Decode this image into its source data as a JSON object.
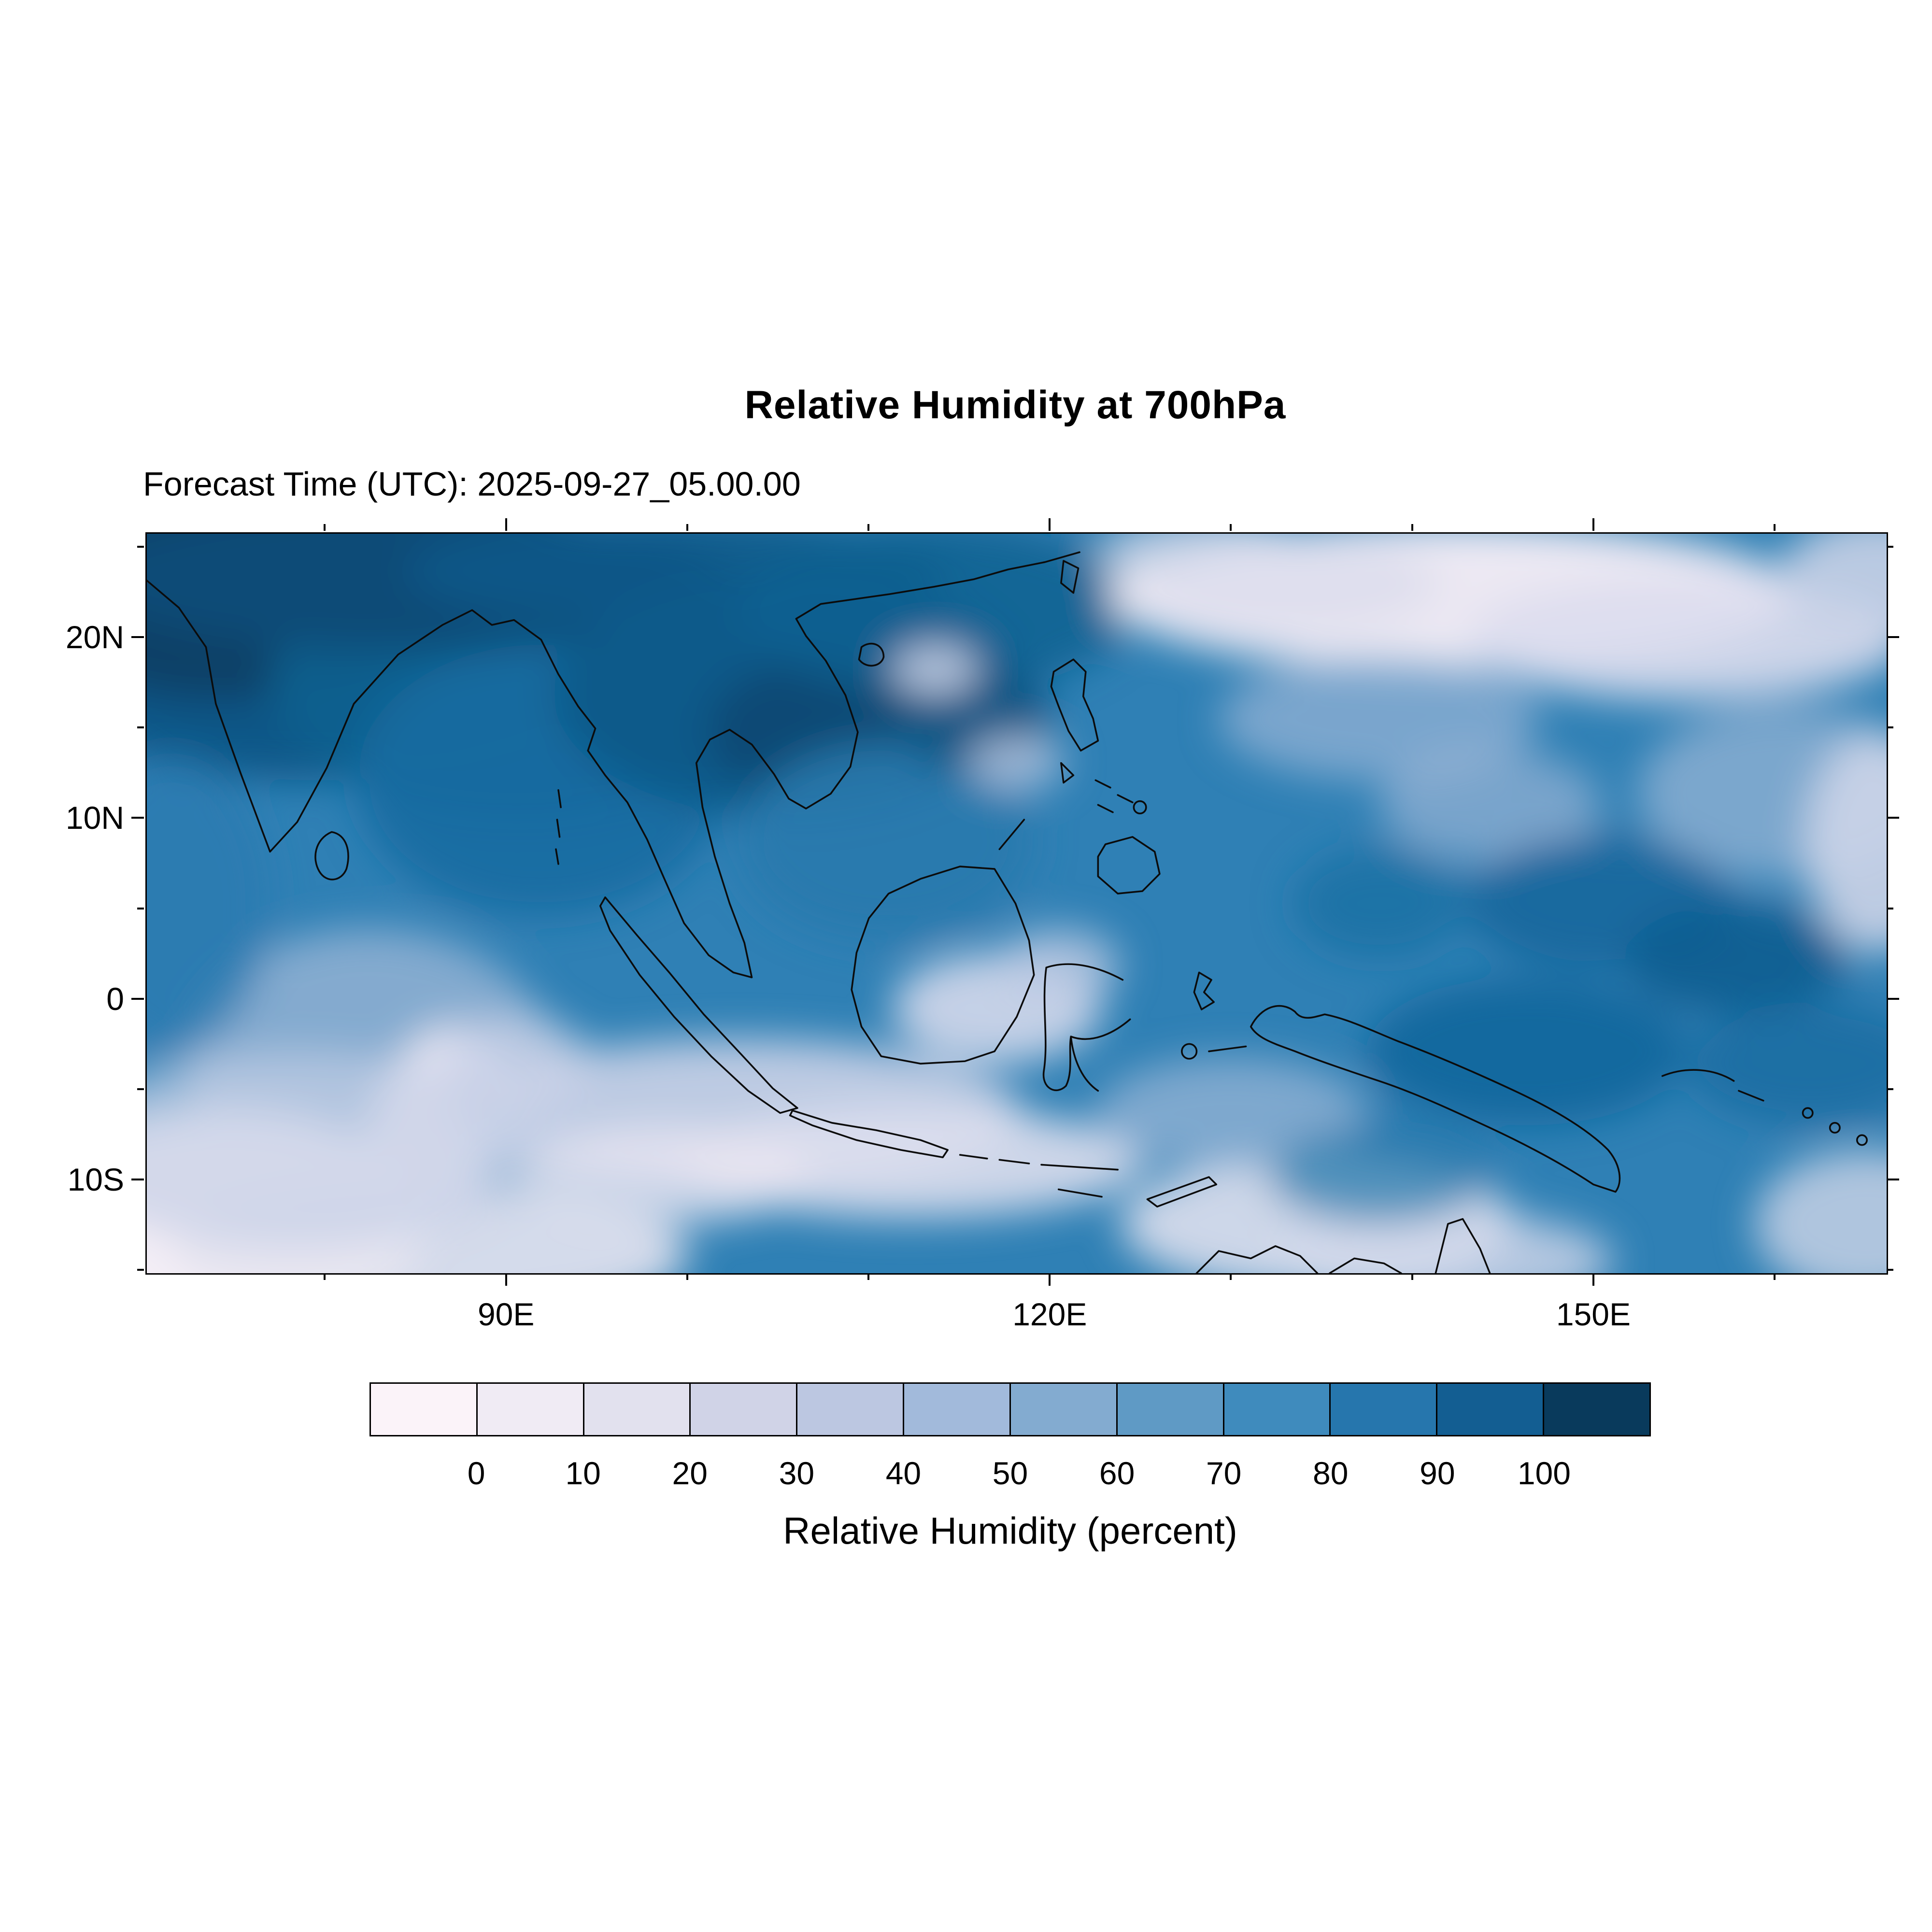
{
  "title": "Relative Humidity at 700hPa",
  "subtitle": "Forecast Time (UTC): 2025-09-27_05.00.00",
  "map": {
    "lon_range": [
      70.1,
      166.1
    ],
    "lat_range": [
      -15.1,
      25.8
    ],
    "x_ticks": [
      {
        "lon": 90,
        "label": "90E"
      },
      {
        "lon": 120,
        "label": "120E"
      },
      {
        "lon": 150,
        "label": "150E"
      }
    ],
    "y_ticks": [
      {
        "lat": 20,
        "label": "20N"
      },
      {
        "lat": 10,
        "label": "10N"
      },
      {
        "lat": 0,
        "label": "0"
      },
      {
        "lat": -10,
        "label": "10S"
      }
    ],
    "minor_lon_step": 10,
    "minor_lat_step": 5
  },
  "colorbar": {
    "label": "Relative Humidity (percent)",
    "tick_labels": [
      "0",
      "10",
      "20",
      "30",
      "40",
      "50",
      "60",
      "70",
      "80",
      "90",
      "100"
    ],
    "colors": [
      "#fbf3f9",
      "#f0ebf4",
      "#e2e1ee",
      "#d0d3e7",
      "#bcc7e1",
      "#a2badb",
      "#83abd0",
      "#5f9ac5",
      "#3f8bbd",
      "#2676ad",
      "#135e92",
      "#093a5c"
    ]
  },
  "chart_data": {
    "type": "heatmap",
    "title": "Relative Humidity at 700hPa",
    "forecast_time_utc": "2025-09-27_05.00.00",
    "variable": "Relative Humidity",
    "units": "percent",
    "pressure_level_hPa": 700,
    "x_tick_labels": [
      "90E",
      "120E",
      "150E"
    ],
    "y_tick_labels": [
      "20N",
      "10N",
      "0",
      "10S"
    ],
    "lon_range_approx_deg_east": [
      70,
      166
    ],
    "lat_range_approx_deg_north": [
      -15,
      26
    ],
    "contour_levels_percent": [
      0,
      10,
      20,
      30,
      40,
      50,
      60,
      70,
      80,
      90,
      100
    ],
    "palette_hex": [
      "#fbf3f9",
      "#f0ebf4",
      "#e2e1ee",
      "#d0d3e7",
      "#bcc7e1",
      "#a2badb",
      "#83abd0",
      "#5f9ac5",
      "#3f8bbd",
      "#2676ad",
      "#135e92",
      "#093a5c"
    ],
    "colorbar_label": "Relative Humidity (percent)",
    "legend_position": "bottom",
    "grid": false
  }
}
